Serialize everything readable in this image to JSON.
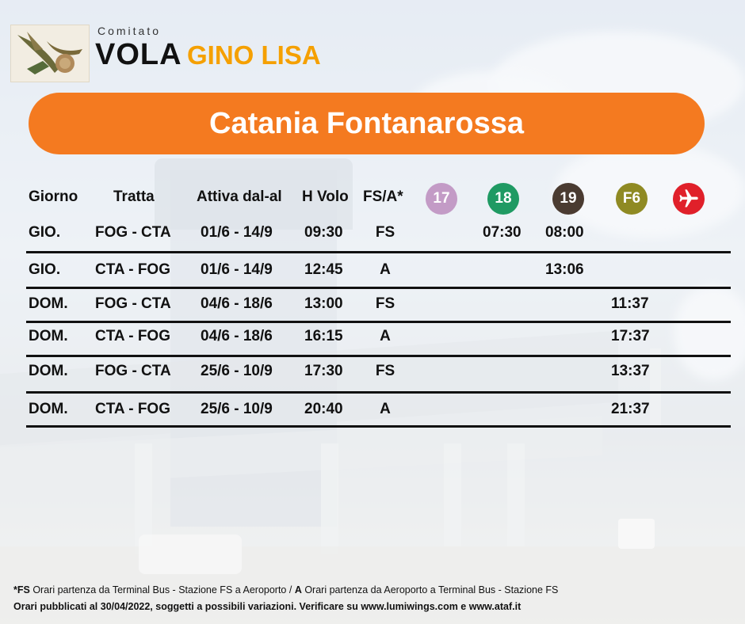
{
  "brand": {
    "top": "Comitato",
    "name_a": "VOLA",
    "name_b": "GINO LISA"
  },
  "banner": {
    "title": "Catania Fontanarossa"
  },
  "headers": {
    "giorno": "Giorno",
    "tratta": "Tratta",
    "attiva": "Attiva dal-al",
    "hvolo": "H Volo",
    "fsa": "FS/A*"
  },
  "badges": [
    {
      "label": "17",
      "color": "#c39bc6"
    },
    {
      "label": "18",
      "color": "#1f9a63"
    },
    {
      "label": "19",
      "color": "#4a3b31"
    },
    {
      "label": "F6",
      "color": "#8f8a23"
    },
    {
      "icon": "plane-icon",
      "color": "#e0202a"
    }
  ],
  "rows": [
    {
      "giorno": "GIO.",
      "tratta": "FOG - CTA",
      "attiva": "01/6 - 14/9",
      "hvolo": "09:30",
      "fsa": "FS",
      "b17": "",
      "b18": "07:30",
      "b19": "08:00",
      "f6": ""
    },
    {
      "giorno": "GIO.",
      "tratta": "CTA - FOG",
      "attiva": "01/6 - 14/9",
      "hvolo": "12:45",
      "fsa": "A",
      "b17": "",
      "b18": "",
      "b19": "13:06",
      "f6": ""
    },
    {
      "giorno": "DOM.",
      "tratta": "FOG - CTA",
      "attiva": "04/6 - 18/6",
      "hvolo": "13:00",
      "fsa": "FS",
      "b17": "",
      "b18": "",
      "b19": "",
      "f6": "11:37"
    },
    {
      "giorno": "DOM.",
      "tratta": "CTA - FOG",
      "attiva": "04/6 - 18/6",
      "hvolo": "16:15",
      "fsa": "A",
      "b17": "",
      "b18": "",
      "b19": "",
      "f6": "17:37"
    },
    {
      "giorno": "DOM.",
      "tratta": "FOG - CTA",
      "attiva": "25/6 - 10/9",
      "hvolo": "17:30",
      "fsa": "FS",
      "b17": "",
      "b18": "",
      "b19": "",
      "f6": "13:37"
    },
    {
      "giorno": "DOM.",
      "tratta": "CTA - FOG",
      "attiva": "25/6 - 10/9",
      "hvolo": "20:40",
      "fsa": "A",
      "b17": "",
      "b18": "",
      "b19": "",
      "f6": "21:37"
    }
  ],
  "footer": {
    "line1_fs": "*FS",
    "line1_fs_text": " Orari partenza da Terminal Bus - Stazione FS a Aeroporto / ",
    "line1_a": "A",
    "line1_a_text": " Orari partenza da Aeroporto a Terminal Bus - Stazione FS",
    "line2": "Orari pubblicati al 30/04/2022, soggetti a possibili variazioni. Verificare su www.lumiwings.com e www.ataf.it"
  }
}
